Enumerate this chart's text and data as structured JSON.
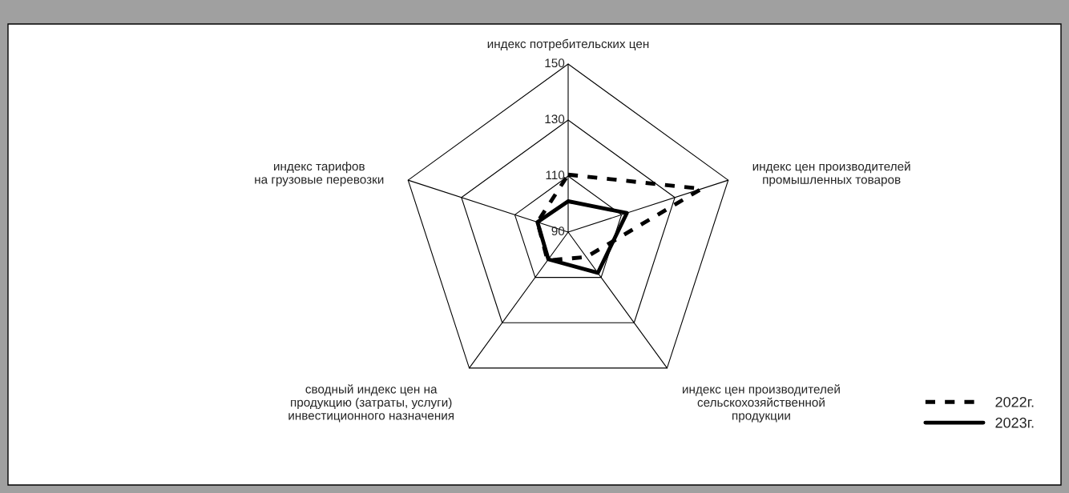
{
  "chart_data": {
    "type": "radar",
    "categories": [
      "индекс потребительских цен",
      "индекс цен производителей\nпромышленных товаров",
      "индекс цен производителей\nсельскохозяйственной\nпродукции",
      "сводный индекс цен на\nпродукцию (затраты, услуги)\nинвестиционного назначения",
      "индекс тарифов\nна грузовые перевозки"
    ],
    "series": [
      {
        "name": "2022г.",
        "color": "#000000",
        "line_style": "dashed",
        "values": [
          110.5,
          140,
          101,
          102.5,
          101.5
        ]
      },
      {
        "name": "2023г.",
        "color": "#000000",
        "line_style": "solid",
        "values": [
          101,
          112,
          108,
          102,
          101.5
        ]
      }
    ],
    "ylim": [
      90,
      150
    ],
    "yticks": [
      90,
      110,
      130,
      150
    ],
    "grid": true,
    "legend": "bottom right",
    "marker": "none"
  }
}
